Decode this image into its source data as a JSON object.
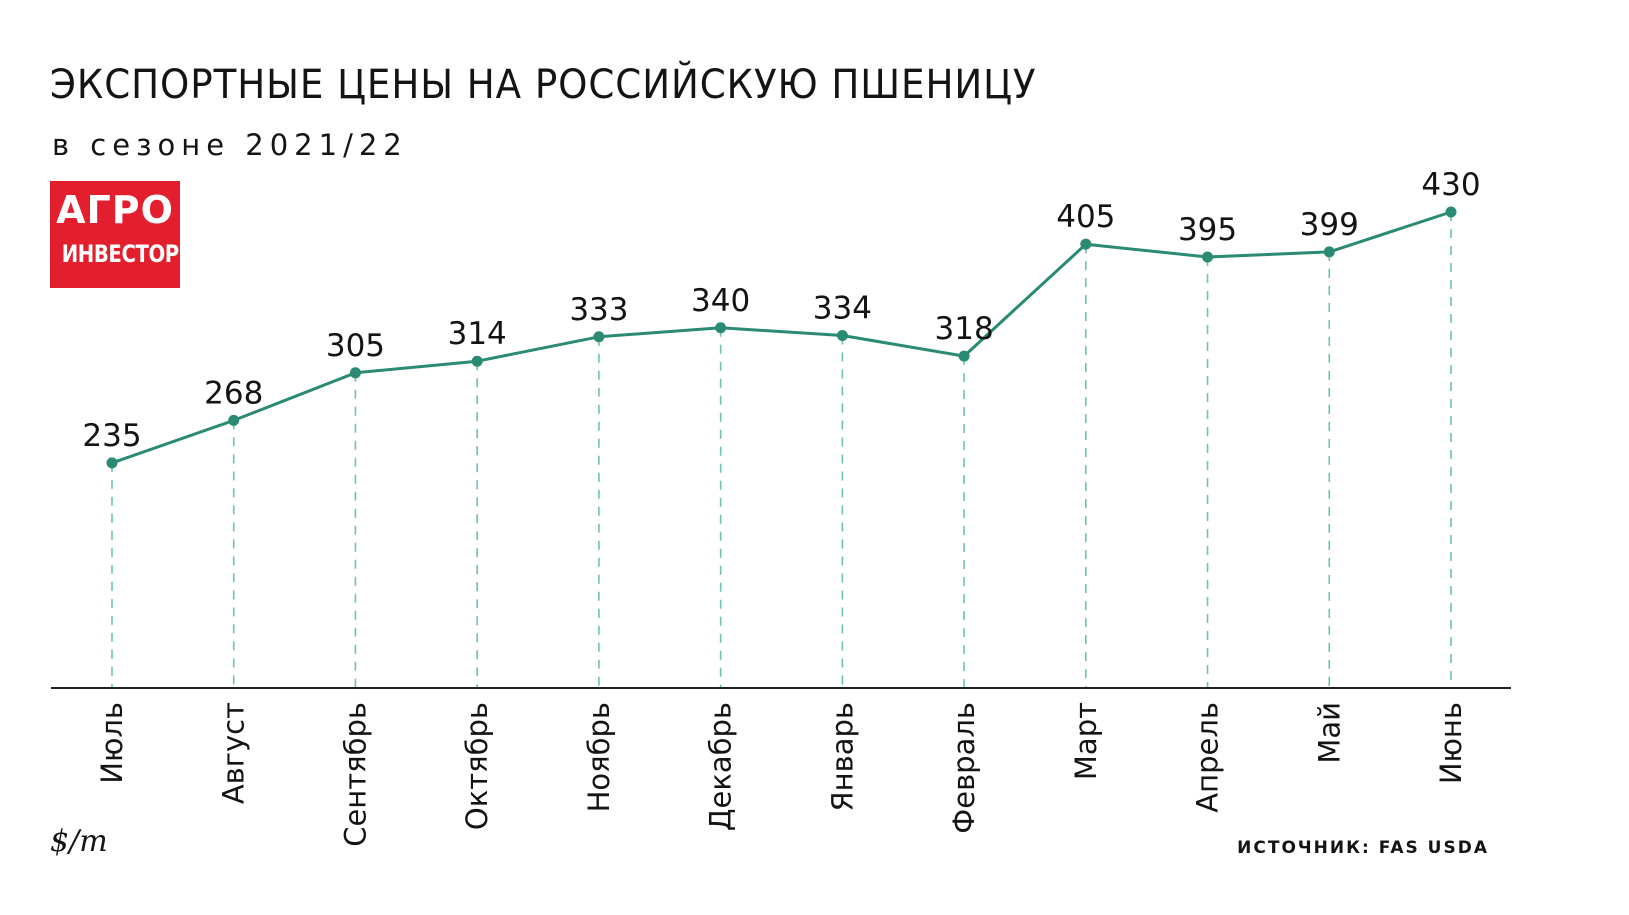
{
  "header": {
    "title": "ЭКСПОРТНЫЕ ЦЕНЫ НА РОССИЙСКУЮ ПШЕНИЦУ",
    "subtitle": "в сезоне 2021/22"
  },
  "logo": {
    "line1": "АГРО",
    "line2": "ИНВЕСТОР"
  },
  "footer": {
    "unit": "$/m",
    "source": "ИСТОЧНИК: FAS USDA"
  },
  "colors": {
    "line": "#2a8a73",
    "dash": "#6cc4a8",
    "logo_bg": "#e31e2d",
    "axis": "#222222"
  },
  "chart_data": {
    "type": "line",
    "title": "ЭКСПОРТНЫЕ ЦЕНЫ НА РОССИЙСКУЮ ПШЕНИЦУ",
    "subtitle": "в сезоне 2021/22",
    "xlabel": "",
    "ylabel": "$/m",
    "categories": [
      "Июль",
      "Август",
      "Сентябрь",
      "Октябрь",
      "Ноябрь",
      "Декабрь",
      "Январь",
      "Февраль",
      "Март",
      "Апрель",
      "Май",
      "Июнь"
    ],
    "values": [
      235,
      268,
      305,
      314,
      333,
      340,
      334,
      318,
      405,
      395,
      399,
      430
    ],
    "data_labels": [
      "235",
      "268",
      "305",
      "314",
      "333",
      "340",
      "334",
      "318",
      "405",
      "395",
      "399",
      "430"
    ],
    "ylim": [
      60,
      430
    ],
    "grid": false,
    "legend": "none"
  }
}
